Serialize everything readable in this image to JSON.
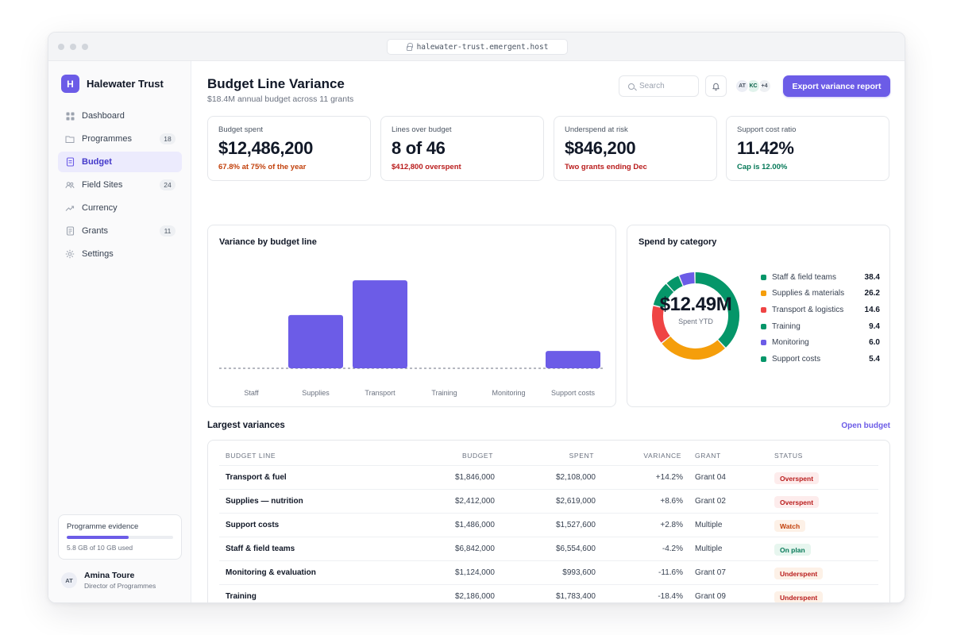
{
  "browser": {
    "url": "halewater-trust.emergent.host"
  },
  "brand": {
    "logo_letter": "H",
    "name": "Halewater Trust",
    "accent": "#6c5ce7"
  },
  "nav": {
    "items": [
      {
        "label": "Dashboard",
        "icon": "grid-icon",
        "badge": ""
      },
      {
        "label": "Programmes",
        "icon": "folder-icon",
        "badge": "18"
      },
      {
        "label": "Budget",
        "icon": "document-icon",
        "badge": "",
        "active": true
      },
      {
        "label": "Field Sites",
        "icon": "users-icon",
        "badge": "24"
      },
      {
        "label": "Currency",
        "icon": "trend-icon",
        "badge": ""
      },
      {
        "label": "Grants",
        "icon": "file-icon",
        "badge": "11"
      },
      {
        "label": "Settings",
        "icon": "gear-icon",
        "badge": ""
      }
    ]
  },
  "storage": {
    "title": "Programme evidence",
    "used_text": "5.8 GB of 10 GB used",
    "fraction": 0.58
  },
  "user": {
    "initials": "AT",
    "name": "Amina Toure",
    "role": "Director of Programmes"
  },
  "header": {
    "title": "Budget Line Variance",
    "subtitle": "$18.4M annual budget across 11 grants",
    "search_placeholder": "Search",
    "avatars": [
      "AT",
      "KC",
      "+4"
    ],
    "export_label": "Export variance report"
  },
  "kpis": [
    {
      "label": "Budget spent",
      "value": "$12,486,200",
      "note": "67.8% at 75% of the year",
      "note_color": "#c2410c"
    },
    {
      "label": "Lines over budget",
      "value": "8 of 46",
      "note": "$412,800 overspent",
      "note_color": "#b91c1c"
    },
    {
      "label": "Underspend at risk",
      "value": "$846,200",
      "note": "Two grants ending Dec",
      "note_color": "#b91c1c"
    },
    {
      "label": "Support cost ratio",
      "value": "11.42%",
      "note": "Cap is 12.00%",
      "note_color": "#047857"
    }
  ],
  "variance_chart": {
    "title": "Variance by budget line",
    "chart_data": {
      "type": "bar",
      "categories": [
        "Staff",
        "Supplies",
        "Transport",
        "Training",
        "Monitoring",
        "Support costs"
      ],
      "values": [
        0,
        8.6,
        14.2,
        0,
        0,
        2.8
      ],
      "ylim": [
        0,
        16
      ],
      "bar_color": "#6c5ce7"
    }
  },
  "spend_chart": {
    "title": "Spend by category",
    "center_value": "$12.49M",
    "center_label": "Spent YTD",
    "chart_data": {
      "type": "pie",
      "categories": [
        "Staff & field teams",
        "Supplies & materials",
        "Transport & logistics",
        "Training",
        "Monitoring",
        "Support costs"
      ],
      "values": [
        38.4,
        26.2,
        14.6,
        9.4,
        6.0,
        5.4
      ],
      "legend_values": [
        "38.4",
        "26.2",
        "14.6",
        "9.4",
        "6.0",
        "5.4"
      ],
      "colors": [
        "#059669",
        "#f59e0b",
        "#ef4444",
        "#059669",
        "#6c5ce7",
        "#059669"
      ]
    }
  },
  "variances": {
    "title": "Largest variances",
    "link": "Open budget",
    "columns": [
      "BUDGET LINE",
      "BUDGET",
      "SPENT",
      "VARIANCE",
      "GRANT",
      "STATUS"
    ],
    "rows": [
      {
        "line": "Transport & fuel",
        "budget": "$1,846,000",
        "spent": "$2,108,000",
        "variance": "+14.2%",
        "grant": "Grant 04",
        "status": "Overspent"
      },
      {
        "line": "Supplies — nutrition",
        "budget": "$2,412,000",
        "spent": "$2,619,000",
        "variance": "+8.6%",
        "grant": "Grant 02",
        "status": "Overspent"
      },
      {
        "line": "Support costs",
        "budget": "$1,486,000",
        "spent": "$1,527,600",
        "variance": "+2.8%",
        "grant": "Multiple",
        "status": "Watch"
      },
      {
        "line": "Staff & field teams",
        "budget": "$6,842,000",
        "spent": "$6,554,600",
        "variance": "-4.2%",
        "grant": "Multiple",
        "status": "On plan"
      },
      {
        "line": "Monitoring & evaluation",
        "budget": "$1,124,000",
        "spent": "$993,600",
        "variance": "-11.6%",
        "grant": "Grant 07",
        "status": "Underspent"
      },
      {
        "line": "Training",
        "budget": "$2,186,000",
        "spent": "$1,783,400",
        "variance": "-18.4%",
        "grant": "Grant 09",
        "status": "Underspent"
      }
    ],
    "status_styles": {
      "Overspent": {
        "bg": "#fdecec",
        "fg": "#b91c1c"
      },
      "Watch": {
        "bg": "#fdf1e7",
        "fg": "#c2410c"
      },
      "On plan": {
        "bg": "#e7f6ef",
        "fg": "#047857"
      },
      "Underspent": {
        "bg": "#fdf1e7",
        "fg": "#b91c1c"
      }
    }
  }
}
